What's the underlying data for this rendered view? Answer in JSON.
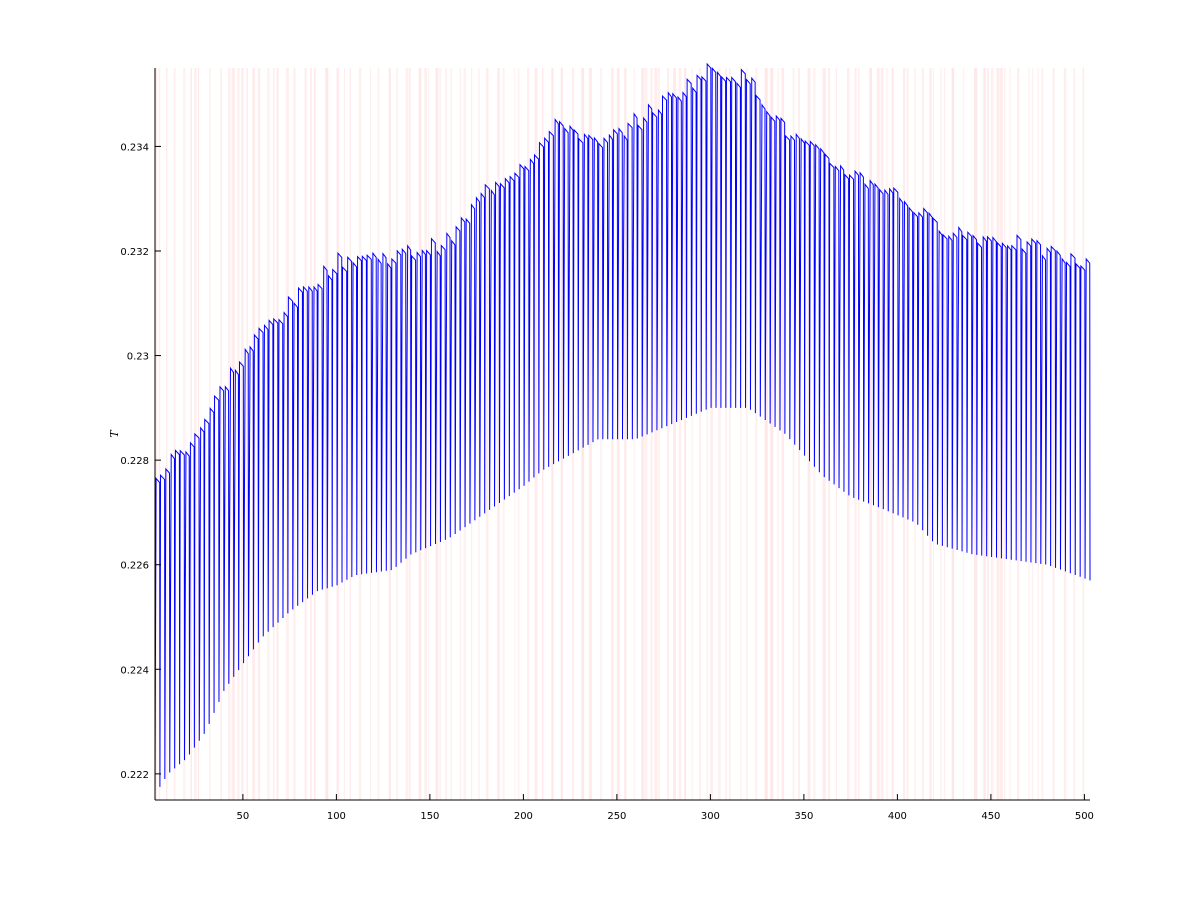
{
  "chart_data": {
    "type": "line",
    "title": "",
    "xlabel": "",
    "ylabel": "T",
    "xlim": [
      3,
      503
    ],
    "ylim": [
      0.2215,
      0.2355
    ],
    "x_ticks": [
      50,
      100,
      150,
      200,
      250,
      300,
      350,
      400,
      450,
      500
    ],
    "x_tick_labels": [
      "50",
      "100",
      "150",
      "200",
      "250",
      "300",
      "350",
      "400",
      "450",
      "500"
    ],
    "y_ticks": [
      0.222,
      0.224,
      0.226,
      0.228,
      0.23,
      0.232,
      0.234
    ],
    "y_tick_labels": [
      "0.222",
      "0.224",
      "0.226",
      "0.228",
      "0.23",
      "0.232",
      "0.234"
    ],
    "grid": false,
    "series_color": "#0000ff",
    "background_band_color": "#ffe6e6",
    "upper_envelope": {
      "x": [
        3,
        10,
        20,
        30,
        40,
        50,
        60,
        75,
        90,
        100,
        110,
        130,
        140,
        160,
        180,
        200,
        220,
        240,
        260,
        280,
        300,
        320,
        340,
        360,
        375,
        395,
        410,
        420,
        440,
        460,
        480,
        503
      ],
      "y": [
        0.2275,
        0.228,
        0.2283,
        0.2288,
        0.2295,
        0.23,
        0.2305,
        0.231,
        0.2315,
        0.2318,
        0.2319,
        0.2319,
        0.232,
        0.2322,
        0.2332,
        0.2337,
        0.2345,
        0.234,
        0.2345,
        0.235,
        0.2355,
        0.2353,
        0.2343,
        0.2338,
        0.2335,
        0.2332,
        0.2328,
        0.2325,
        0.2323,
        0.2322,
        0.232,
        0.2317
      ]
    },
    "lower_envelope": {
      "x": [
        3,
        10,
        20,
        30,
        40,
        50,
        60,
        75,
        90,
        100,
        110,
        130,
        140,
        160,
        180,
        200,
        210,
        220,
        240,
        260,
        280,
        300,
        310,
        320,
        340,
        360,
        375,
        390,
        410,
        420,
        440,
        460,
        480,
        503
      ],
      "y": [
        0.2216,
        0.222,
        0.2223,
        0.2228,
        0.2236,
        0.2241,
        0.2246,
        0.2251,
        0.2255,
        0.2256,
        0.2258,
        0.2259,
        0.2262,
        0.2265,
        0.227,
        0.2275,
        0.2278,
        0.228,
        0.2284,
        0.2284,
        0.2287,
        0.229,
        0.229,
        0.229,
        0.2285,
        0.2277,
        0.2273,
        0.2271,
        0.2268,
        0.2264,
        0.2262,
        0.2261,
        0.226,
        0.2257
      ]
    },
    "num_cycles": 190
  }
}
